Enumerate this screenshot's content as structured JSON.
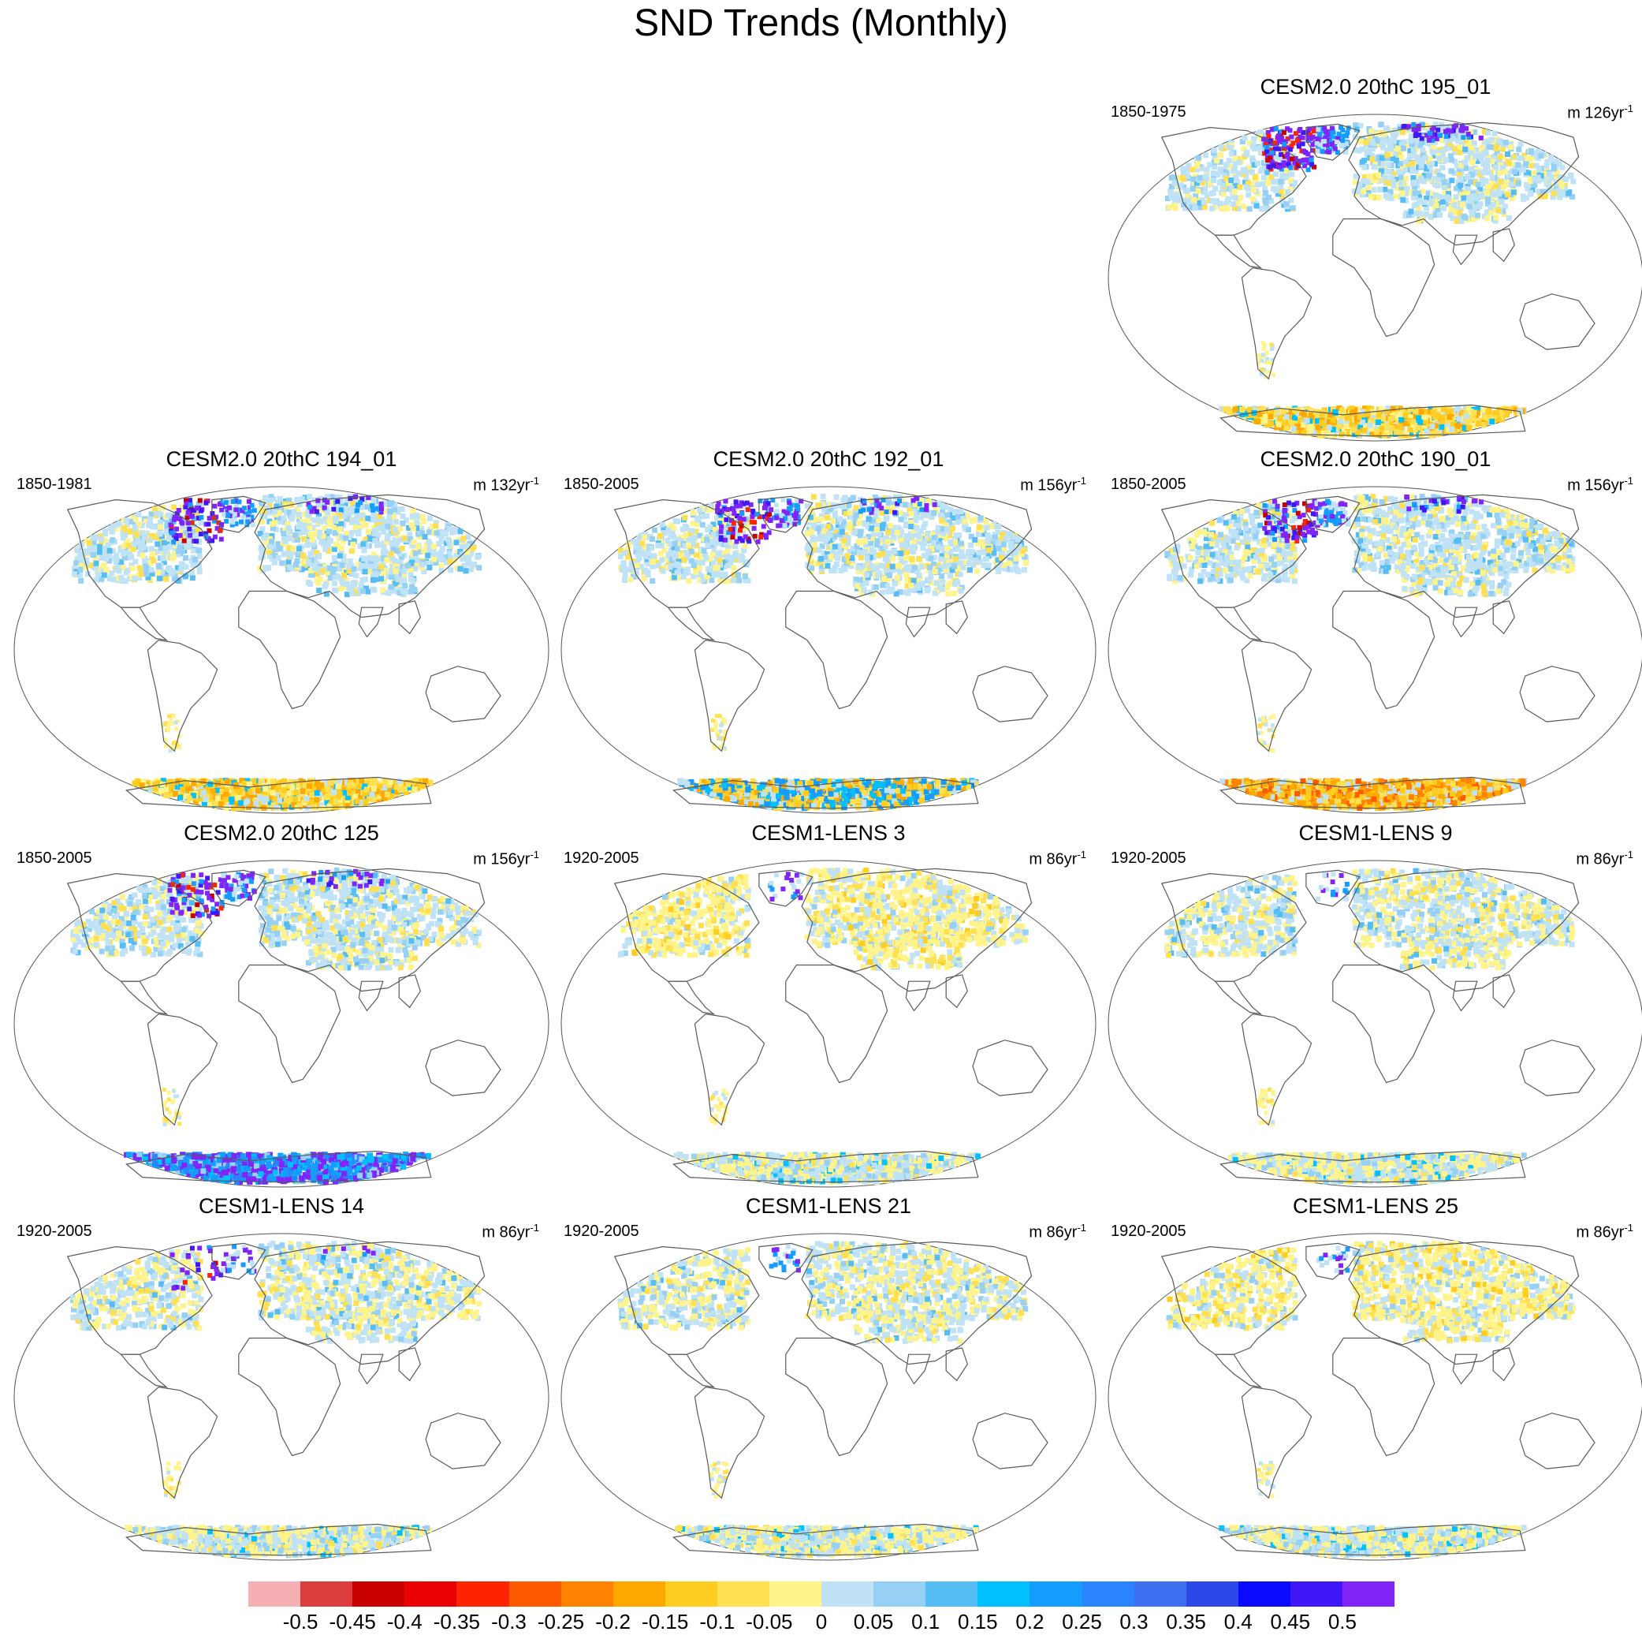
{
  "title": "SND Trends (Monthly)",
  "panels": [
    {
      "row": 0,
      "col": 2,
      "title": "CESM2.0 20thC 195_01",
      "period": "1850-1975",
      "units": "m 126yr",
      "units_exp": "-1",
      "north": "mixed",
      "south": "orange",
      "purple": "heavy"
    },
    {
      "row": 1,
      "col": 0,
      "title": "CESM2.0 20thC 194_01",
      "period": "1850-1981",
      "units": "m 132yr",
      "units_exp": "-1",
      "north": "mixed",
      "south": "orange",
      "purple": "medium"
    },
    {
      "row": 1,
      "col": 1,
      "title": "CESM2.0 20thC 192_01",
      "period": "1850-2005",
      "units": "m 156yr",
      "units_exp": "-1",
      "north": "mixed",
      "south": "blueorange",
      "purple": "medium"
    },
    {
      "row": 1,
      "col": 2,
      "title": "CESM2.0 20thC 190_01",
      "period": "1850-2005",
      "units": "m 156yr",
      "units_exp": "-1",
      "north": "mixed",
      "south": "red",
      "purple": "medium"
    },
    {
      "row": 2,
      "col": 0,
      "title": "CESM2.0 20thC 125",
      "period": "1850-2005",
      "units": "m 156yr",
      "units_exp": "-1",
      "north": "mixed",
      "south": "purpleblue",
      "purple": "medium"
    },
    {
      "row": 2,
      "col": 1,
      "title": "CESM1-LENS 3",
      "period": "1920-2005",
      "units": "m 86yr",
      "units_exp": "-1",
      "north": "yellow",
      "south": "light",
      "purple": "none"
    },
    {
      "row": 2,
      "col": 2,
      "title": "CESM1-LENS 9",
      "period": "1920-2005",
      "units": "m 86yr",
      "units_exp": "-1",
      "north": "lightmix",
      "south": "light",
      "purple": "none"
    },
    {
      "row": 3,
      "col": 0,
      "title": "CESM1-LENS 14",
      "period": "1920-2005",
      "units": "m 86yr",
      "units_exp": "-1",
      "north": "lightmix",
      "south": "light",
      "purple": "light"
    },
    {
      "row": 3,
      "col": 1,
      "title": "CESM1-LENS 21",
      "period": "1920-2005",
      "units": "m 86yr",
      "units_exp": "-1",
      "north": "lightmix",
      "south": "light",
      "purple": "none"
    },
    {
      "row": 3,
      "col": 2,
      "title": "CESM1-LENS 25",
      "period": "1920-2005",
      "units": "m 86yr",
      "units_exp": "-1",
      "north": "yellow",
      "south": "light",
      "purple": "none"
    }
  ],
  "colorbar": {
    "colors": [
      "#f6b0b3",
      "#dc3e40",
      "#c80000",
      "#ea0000",
      "#ff2400",
      "#ff5a00",
      "#ff8200",
      "#ffa800",
      "#ffcc20",
      "#ffe050",
      "#fff48c",
      "#bfe2f6",
      "#96d0f4",
      "#56bdf4",
      "#00c0ff",
      "#159cff",
      "#2a84ff",
      "#3c70f0",
      "#2c48e8",
      "#0a0aff",
      "#4018f8",
      "#8024f8"
    ],
    "labels": [
      "-0.5",
      "-0.45",
      "-0.4",
      "-0.35",
      "-0.3",
      "-0.25",
      "-0.2",
      "-0.15",
      "-0.1",
      "-0.05",
      "0",
      "0.05",
      "0.1",
      "0.15",
      "0.2",
      "0.25",
      "0.3",
      "0.35",
      "0.4",
      "0.45",
      "0.5"
    ]
  }
}
